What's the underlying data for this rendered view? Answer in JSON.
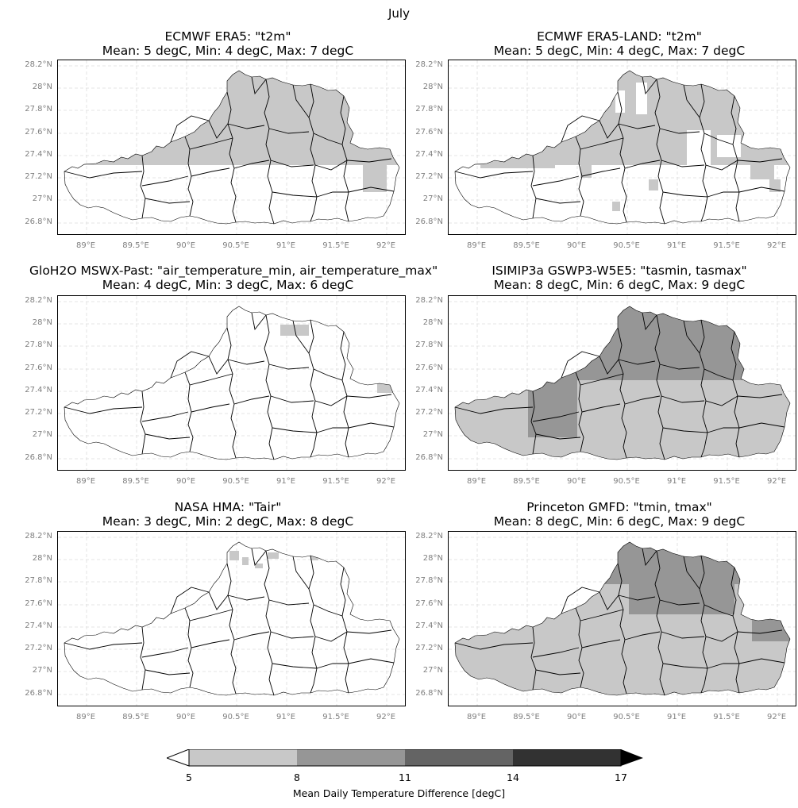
{
  "figure": {
    "title": "July"
  },
  "colorbar": {
    "label": "Mean Daily Temperature Difference [degC]",
    "ticks": [
      "5",
      "8",
      "11",
      "14",
      "17"
    ],
    "colors": [
      "#c8c8c8",
      "#969696",
      "#646464",
      "#323232"
    ],
    "extend": "both"
  },
  "axes": {
    "y_ticks": [
      "28.2°N",
      "28°N",
      "27.8°N",
      "27.6°N",
      "27.4°N",
      "27.2°N",
      "27°N",
      "26.8°N"
    ],
    "x_ticks": [
      "89°E",
      "89.5°E",
      "90°E",
      "90.5°E",
      "91°E",
      "91.5°E",
      "92°E"
    ]
  },
  "panels": [
    {
      "id": "era5",
      "title": "ECMWF ERA5: \"t2m\"",
      "stats": "Mean: 5 degC, Min: 4 degC, Max: 7 degC",
      "pattern": "era5"
    },
    {
      "id": "era5land",
      "title": "ECMWF ERA5-LAND: \"t2m\"",
      "stats": "Mean: 5 degC, Min: 4 degC, Max: 7 degC",
      "pattern": "era5land"
    },
    {
      "id": "mswx",
      "title": "GloH2O MSWX-Past: \"air_temperature_min, air_temperature_max\"",
      "stats": "Mean: 4 degC, Min: 3 degC, Max: 6 degC",
      "pattern": "mswx"
    },
    {
      "id": "isimip",
      "title": "ISIMIP3a GSWP3-W5E5: \"tasmin, tasmax\"",
      "stats": "Mean: 8 degC, Min: 6 degC, Max: 9 degC",
      "pattern": "isimip"
    },
    {
      "id": "hma",
      "title": "NASA HMA: \"Tair\"",
      "stats": "Mean: 3 degC, Min: 2 degC, Max: 8 degC",
      "pattern": "hma"
    },
    {
      "id": "gmfd",
      "title": "Princeton GMFD: \"tmin, tmax\"",
      "stats": "Mean: 8 degC, Min: 6 degC, Max: 9 degC",
      "pattern": "gmfd"
    }
  ]
}
